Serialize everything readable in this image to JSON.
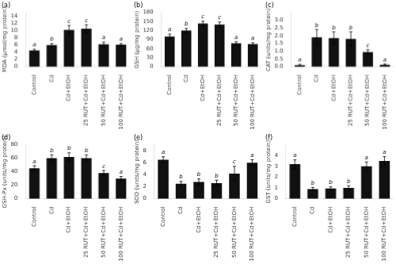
{
  "chart_data": [
    {
      "type": "bar",
      "title": "(a)",
      "ylabel": "MDA (μmol/mg protein)",
      "categories": [
        "Control",
        "Cd",
        "Cd+EtOH",
        "25 RUT+Cd+EtOH",
        "50 RUT+Cd+EtOH",
        "100 RUT+Cd+EtOH"
      ],
      "values": [
        4.5,
        6.0,
        10.2,
        10.5,
        6.2,
        6.1
      ],
      "errors": [
        0.3,
        0.4,
        1.2,
        1.1,
        0.6,
        0.3
      ],
      "annotations": [
        "a",
        "b",
        "c",
        "c",
        "a",
        "a"
      ],
      "color": "#111111",
      "ylim": [
        0,
        15
      ],
      "yticks": [
        0,
        2,
        4,
        6,
        8,
        10,
        12,
        14
      ],
      "grid": false
    },
    {
      "type": "bar",
      "title": "(b)",
      "ylabel": "GSH (μg/mg protein)",
      "categories": [
        "Control",
        "Cd",
        "Cd+EtOH",
        "25 RUT+Cd+EtOH",
        "50 RUT+Cd+EtOH",
        "100 RUT+Cd+EtOH"
      ],
      "values": [
        100,
        120,
        143,
        140,
        78,
        75
      ],
      "errors": [
        8,
        7,
        8,
        8,
        5,
        5
      ],
      "annotations": [
        "a",
        "b",
        "c",
        "c",
        "a",
        "a"
      ],
      "color": "#111111",
      "ylim": [
        0,
        180
      ],
      "yticks": [
        0,
        30,
        60,
        90,
        120,
        150,
        180
      ],
      "grid": false
    },
    {
      "type": "bar",
      "title": "(c)",
      "ylabel": "CAT (units/mg protein)",
      "categories": [
        "Control",
        "Cd",
        "Cd+EtOH",
        "25 RUT+Cd+EtOH",
        "50 RUT+Cd+EtOH",
        "100 RUT+Cd+EtOH"
      ],
      "values": [
        0.1,
        1.9,
        1.85,
        1.8,
        0.95,
        0.12
      ],
      "errors": [
        0.05,
        0.5,
        0.4,
        0.45,
        0.15,
        0.06
      ],
      "annotations": [
        "a",
        "b",
        "b",
        "b",
        "c",
        "a"
      ],
      "color": "#111111",
      "ylim": [
        0,
        3.5
      ],
      "yticks": [
        {
          "value": 0,
          "label": "0.0"
        },
        0.5,
        {
          "value": 1,
          "label": "1.0"
        },
        1.5,
        {
          "value": 2,
          "label": "2.0"
        },
        2.5,
        {
          "value": 3,
          "label": "3.0"
        }
      ],
      "grid": false
    },
    {
      "type": "bar",
      "title": "(d)",
      "ylabel": "GSH-Px (units/mg protein)",
      "categories": [
        "Control",
        "Cd",
        "Cd+EtOH",
        "25 RUT+Cd+EtOH",
        "50 RUT+Cd+EtOH",
        "100 RUT+Cd+EtOH"
      ],
      "values": [
        45,
        60,
        62,
        60,
        38,
        30
      ],
      "errors": [
        4,
        5,
        6,
        5,
        4,
        3
      ],
      "annotations": [
        "a",
        "b",
        "b",
        "b",
        "c",
        "a"
      ],
      "color": "#111111",
      "ylim": [
        0,
        80
      ],
      "yticks": [
        0,
        20,
        40,
        60,
        80
      ],
      "grid": false
    },
    {
      "type": "bar",
      "title": "(e)",
      "ylabel": "SOD (units/mg protein)",
      "categories": [
        "Control",
        "Cd",
        "Cd+EtOH",
        "25 RUT+Cd+EtOH",
        "50 RUT+Cd+EtOH",
        "100 RUT+Cd+EtOH"
      ],
      "values": [
        6.5,
        2.5,
        2.8,
        2.6,
        4.2,
        6.0
      ],
      "errors": [
        0.5,
        0.4,
        0.5,
        0.5,
        1.2,
        0.5
      ],
      "annotations": [
        "a",
        "b",
        "b",
        "b",
        "c",
        "a"
      ],
      "color": "#111111",
      "ylim": [
        0,
        9
      ],
      "yticks": [
        0,
        2,
        4,
        6,
        8
      ],
      "grid": false
    },
    {
      "type": "bar",
      "title": "(f)",
      "ylabel": "GST (units/mg protein)",
      "categories": [
        "Control",
        "Cd",
        "Cd+EtOH",
        "25 RUT+Cd+EtOH",
        "50 RUT+Cd+EtOH",
        "100 RUT+Cd+EtOH"
      ],
      "values": [
        3.2,
        0.9,
        0.95,
        1.0,
        3.0,
        3.5
      ],
      "errors": [
        0.4,
        0.15,
        0.15,
        0.2,
        0.4,
        0.4
      ],
      "annotations": [
        "a",
        "b",
        "b",
        "b",
        "a",
        "a"
      ],
      "color": "#111111",
      "ylim": [
        0,
        5
      ],
      "yticks": [
        0,
        1,
        2,
        3,
        4
      ],
      "grid": false
    }
  ]
}
